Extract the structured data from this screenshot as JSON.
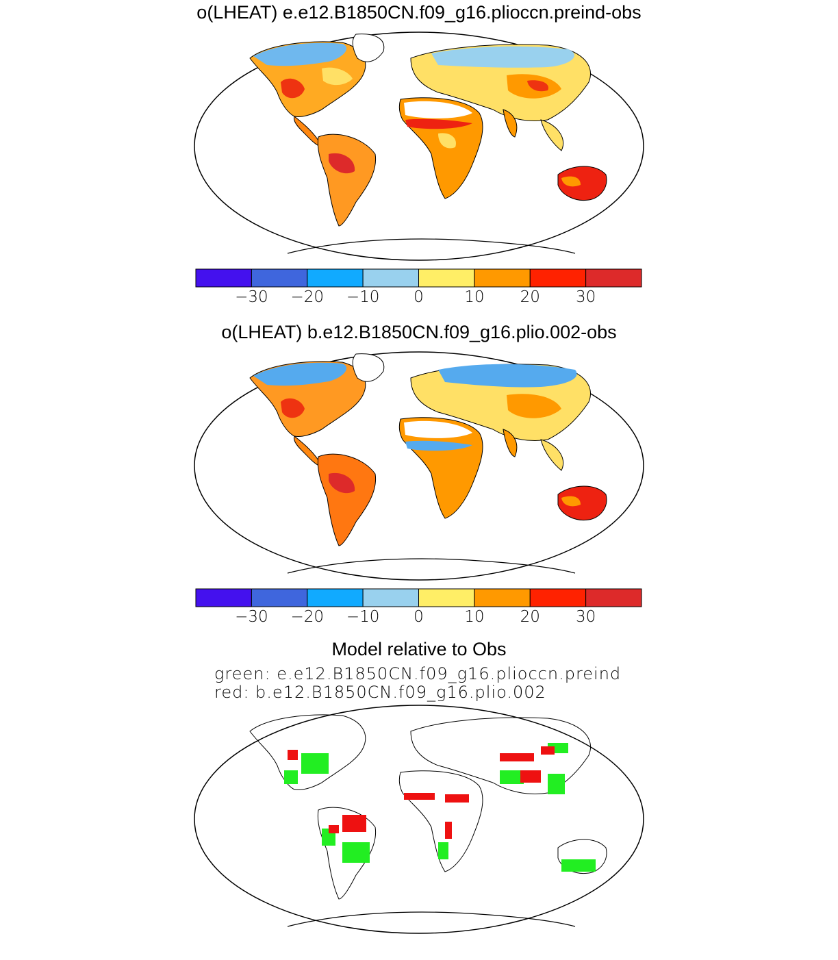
{
  "panels": [
    {
      "title": "o(LHEAT) e.e12.B1850CN.f09_g16.plioccn.preind-obs"
    },
    {
      "title": "o(LHEAT) b.e12.B1850CN.f09_g16.plio.002-obs"
    }
  ],
  "colorbar": {
    "colors": [
      "#4411ee",
      "#3f66dd",
      "#11aaff",
      "#99d1ee",
      "#ffee66",
      "#ff9900",
      "#ff2200",
      "#dd2a2a"
    ],
    "labels": [
      "−30",
      "−20",
      "−10",
      "0",
      "10",
      "20",
      "30"
    ]
  },
  "comparison": {
    "title": "Model relative to Obs",
    "legend_green": "green: e.e12.B1850CN.f09_g16.plioccn.preind",
    "legend_red": "red: b.e12.B1850CN.f09_g16.plio.002",
    "green_color": "#22ee22",
    "red_color": "#ee1111"
  }
}
